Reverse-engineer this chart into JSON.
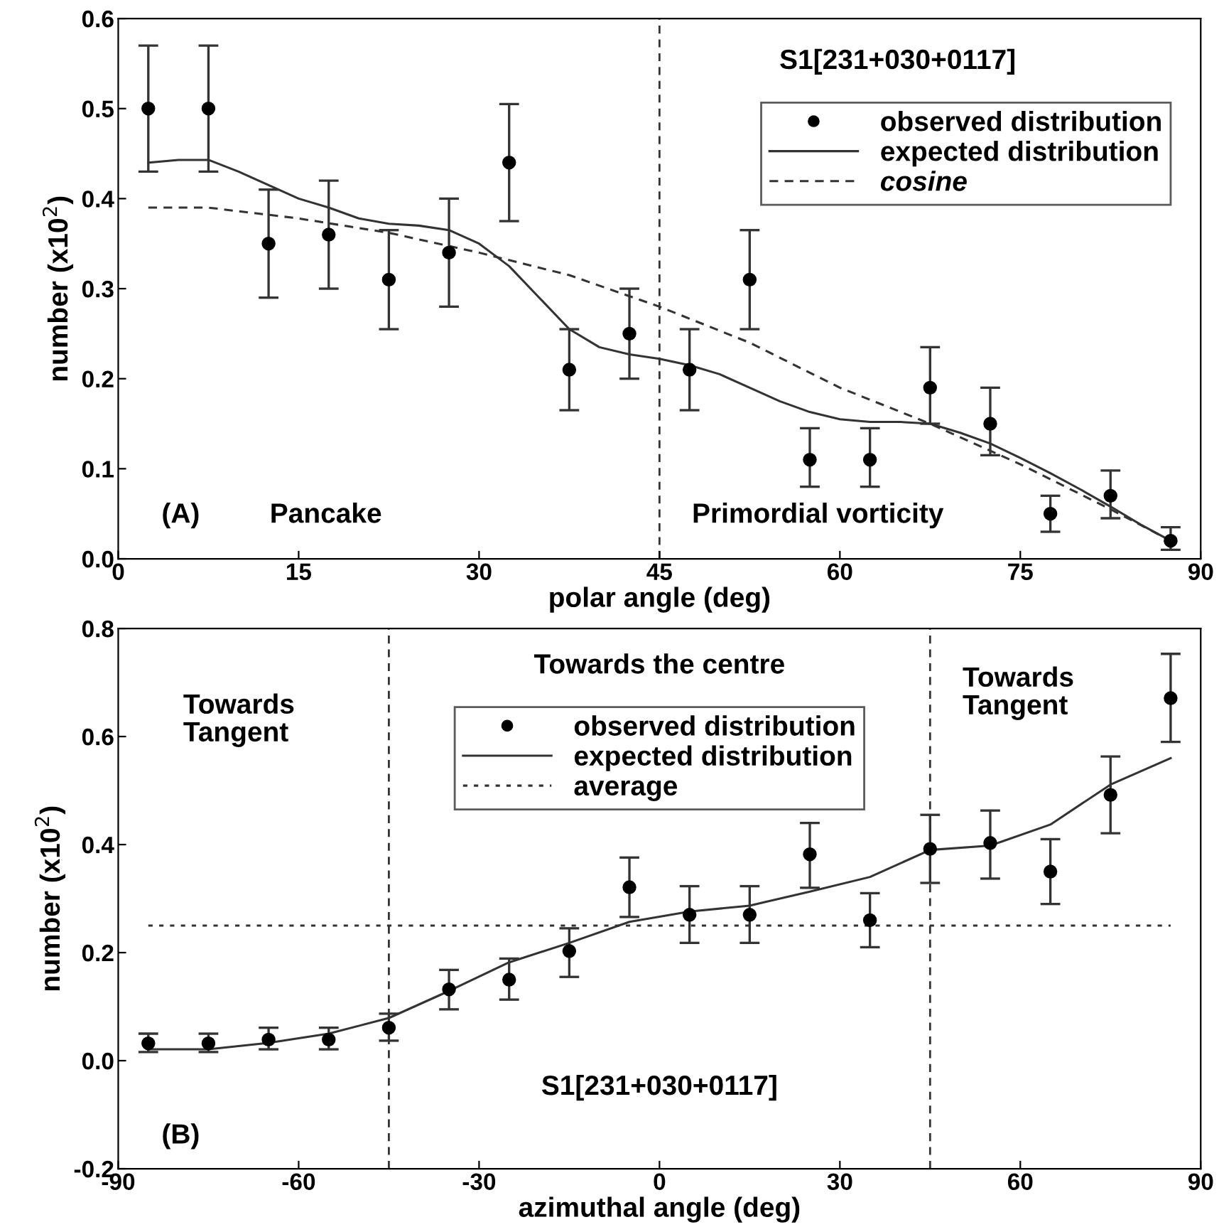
{
  "chart_data": [
    {
      "type": "scatter",
      "xlabel": "polar angle (deg)",
      "ylabel": "number (x10$^{2}$)",
      "xlim": [
        0,
        90
      ],
      "xticks": [
        0,
        15,
        30,
        45,
        60,
        75,
        90
      ],
      "ylim": [
        0,
        0.6
      ],
      "yticks": [
        {
          "value": 0,
          "label": "0.0"
        },
        0.1,
        0.2,
        0.3,
        0.4,
        0.5,
        0.6
      ],
      "legend": "top right",
      "grid": false,
      "ref_lines": [
        {
          "axis": "x",
          "value": 45,
          "line_style": "dashed",
          "color": "#333333"
        }
      ],
      "annotations": [
        "S1[231+030+0117]",
        "(A)",
        "Pancake",
        "Primordial vorticity"
      ],
      "series": [
        {
          "name": "observed distribution",
          "marker": "circle",
          "color": "#000000",
          "x": [
            2.5,
            7.5,
            12.5,
            17.5,
            22.5,
            27.5,
            32.5,
            37.5,
            42.5,
            47.5,
            52.5,
            57.5,
            62.5,
            67.5,
            72.5,
            77.5,
            82.5,
            87.5
          ],
          "values": [
            0.5,
            0.5,
            0.35,
            0.36,
            0.31,
            0.34,
            0.44,
            0.21,
            0.25,
            0.21,
            0.31,
            0.11,
            0.11,
            0.19,
            0.15,
            0.05,
            0.07,
            0.02
          ],
          "errors": [
            [
              0.43,
              0.57
            ],
            [
              0.43,
              0.57
            ],
            [
              0.29,
              0.41
            ],
            [
              0.3,
              0.42
            ],
            [
              0.255,
              0.365
            ],
            [
              0.28,
              0.4
            ],
            [
              0.375,
              0.505
            ],
            [
              0.165,
              0.255
            ],
            [
              0.2,
              0.3
            ],
            [
              0.165,
              0.255
            ],
            [
              0.255,
              0.365
            ],
            [
              0.08,
              0.145
            ],
            [
              0.08,
              0.145
            ],
            [
              0.15,
              0.235
            ],
            [
              0.115,
              0.19
            ],
            [
              0.03,
              0.07
            ],
            [
              0.045,
              0.098
            ],
            [
              0.01,
              0.035
            ]
          ]
        },
        {
          "name": "expected distribution",
          "type": "line",
          "line_style": "solid",
          "color": "#333333",
          "x": [
            2.5,
            5,
            7.5,
            10,
            12.5,
            15,
            17.5,
            20,
            22.5,
            25,
            27.5,
            30,
            32.5,
            35,
            37.5,
            40,
            42.5,
            45,
            47.5,
            50,
            52.5,
            55,
            57.5,
            60,
            62.5,
            65,
            67.5,
            70,
            72.5,
            75,
            77.5,
            80,
            82.5,
            85,
            87.5
          ],
          "values": [
            0.44,
            0.443,
            0.443,
            0.43,
            0.415,
            0.4,
            0.39,
            0.378,
            0.372,
            0.37,
            0.365,
            0.35,
            0.325,
            0.29,
            0.255,
            0.235,
            0.227,
            0.222,
            0.215,
            0.205,
            0.19,
            0.175,
            0.163,
            0.155,
            0.152,
            0.152,
            0.15,
            0.14,
            0.128,
            0.112,
            0.095,
            0.077,
            0.058,
            0.038,
            0.02
          ]
        },
        {
          "name": "cosine",
          "type": "line",
          "line_style": "dashed",
          "color": "#333333",
          "x": [
            2.5,
            7.5,
            15,
            22.5,
            30,
            37.5,
            45,
            52.5,
            60,
            67.5,
            75,
            82.5,
            87.5
          ],
          "values": [
            0.39,
            0.39,
            0.378,
            0.362,
            0.34,
            0.315,
            0.28,
            0.24,
            0.19,
            0.15,
            0.105,
            0.055,
            0.02
          ]
        }
      ]
    },
    {
      "type": "scatter",
      "xlabel": "azimuthal angle (deg)",
      "ylabel": "number (x10$^{2}$)",
      "xlim": [
        -90,
        90
      ],
      "xticks": [
        -90,
        -60,
        -30,
        0,
        30,
        60,
        90
      ],
      "ylim": [
        -0.2,
        0.8
      ],
      "yticks": [
        -0.2,
        {
          "value": 0,
          "label": "0.0"
        },
        0.2,
        0.4,
        0.6,
        0.8
      ],
      "legend": "top",
      "grid": false,
      "ref_lines": [
        {
          "axis": "x",
          "value": -45,
          "line_style": "dashed",
          "color": "#333333"
        },
        {
          "axis": "x",
          "value": 45,
          "line_style": "dashed",
          "color": "#333333"
        }
      ],
      "annotations": [
        "Towards\nTangent",
        "Towards the centre",
        "Towards\nTangent",
        "S1[231+030+0117]",
        "(B)"
      ],
      "series": [
        {
          "name": "observed distribution",
          "marker": "circle",
          "color": "#000000",
          "x": [
            -85,
            -75,
            -65,
            -55,
            -45,
            -35,
            -25,
            -15,
            -5,
            5,
            15,
            25,
            35,
            45,
            55,
            65,
            75,
            85
          ],
          "values": [
            0.032,
            0.032,
            0.039,
            0.039,
            0.061,
            0.132,
            0.15,
            0.203,
            0.321,
            0.27,
            0.27,
            0.382,
            0.26,
            0.392,
            0.403,
            0.35,
            0.492,
            0.671
          ],
          "errors": [
            [
              0.016,
              0.05
            ],
            [
              0.016,
              0.05
            ],
            [
              0.021,
              0.061
            ],
            [
              0.021,
              0.061
            ],
            [
              0.037,
              0.087
            ],
            [
              0.095,
              0.168
            ],
            [
              0.113,
              0.189
            ],
            [
              0.155,
              0.245
            ],
            [
              0.266,
              0.376
            ],
            [
              0.218,
              0.323
            ],
            [
              0.218,
              0.323
            ],
            [
              0.32,
              0.44
            ],
            [
              0.21,
              0.31
            ],
            [
              0.329,
              0.455
            ],
            [
              0.337,
              0.463
            ],
            [
              0.29,
              0.41
            ],
            [
              0.421,
              0.563
            ],
            [
              0.59,
              0.753
            ]
          ]
        },
        {
          "name": "expected distribution",
          "type": "line",
          "line_style": "solid",
          "color": "#333333",
          "x": [
            -85,
            -75,
            -65,
            -55,
            -45,
            -35,
            -25,
            -15,
            -5,
            5,
            15,
            25,
            35,
            45,
            55,
            65,
            75,
            85
          ],
          "values": [
            0.021,
            0.021,
            0.033,
            0.05,
            0.079,
            0.129,
            0.182,
            0.218,
            0.257,
            0.276,
            0.287,
            0.313,
            0.34,
            0.39,
            0.398,
            0.437,
            0.511,
            0.56
          ]
        },
        {
          "name": "average",
          "type": "line",
          "line_style": "dotted",
          "color": "#333333",
          "x": [
            -85,
            85
          ],
          "values": [
            0.25,
            0.25
          ]
        }
      ]
    }
  ]
}
